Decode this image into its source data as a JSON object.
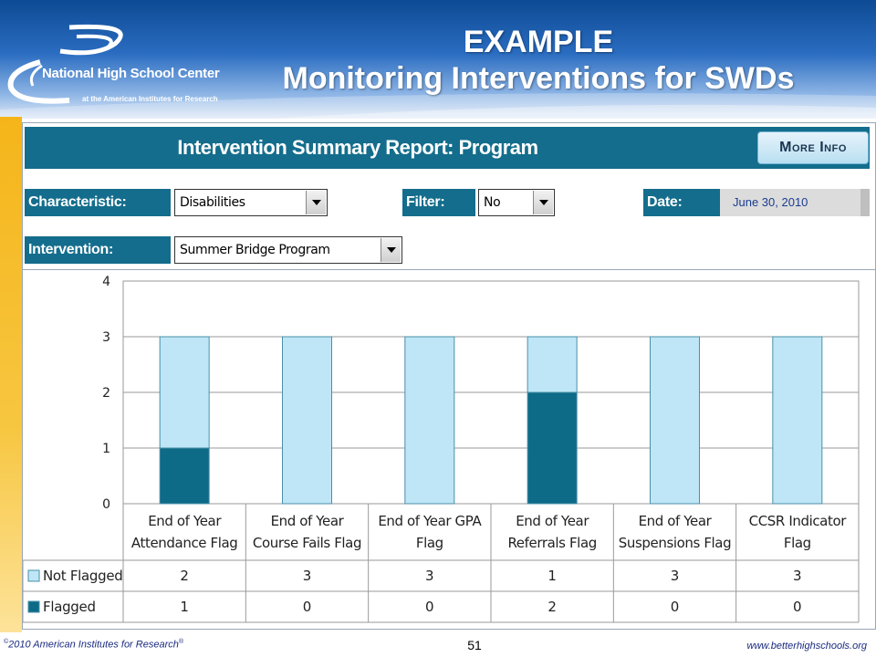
{
  "slide": {
    "title_line1": "EXAMPLE",
    "title_line2": "Monitoring Interventions for SWDs",
    "logo_name": "National High School Center",
    "logo_sub": "at the American Institutes for Research",
    "footer_copyright": "2010 American Institutes for Research",
    "footer_page": "51",
    "footer_url": "www.betterhighschools.org",
    "colors": {
      "header_blue": "#0d4a94",
      "side_bar": "#f5b51a"
    }
  },
  "report": {
    "title": "Intervention Summary Report: Program",
    "more_info_label": "More Info",
    "characteristic_label": "Characteristic:",
    "characteristic_value": "Disabilities",
    "filter_label": "Filter:",
    "filter_value": "No",
    "date_label": "Date:",
    "date_value": "June 30, 2010",
    "intervention_label": "Intervention:",
    "intervention_value": "Summer Bridge Program",
    "colors": {
      "header_teal": "#146d8c"
    }
  },
  "chart_data": {
    "type": "bar",
    "stacked": true,
    "categories": [
      [
        "End of Year",
        "Attendance Flag"
      ],
      [
        "End of Year",
        "Course Fails Flag"
      ],
      [
        "End of Year GPA",
        "Flag"
      ],
      [
        "End of Year",
        "Referrals Flag"
      ],
      [
        "End of Year",
        "Suspensions Flag"
      ],
      [
        "CCSR Indicator",
        "Flag"
      ]
    ],
    "series": [
      {
        "name": "Flagged",
        "values": [
          1,
          0,
          0,
          2,
          0,
          0
        ],
        "color": "#0e6b88"
      },
      {
        "name": "Not Flagged",
        "values": [
          2,
          3,
          3,
          1,
          3,
          3
        ],
        "color": "#bfe6f6"
      }
    ],
    "table_row_order": [
      "Not Flagged",
      "Flagged"
    ],
    "ylim": [
      0,
      4
    ],
    "yticks": [
      0,
      1,
      2,
      3,
      4
    ],
    "grid": true,
    "legend": "data-table-left"
  }
}
